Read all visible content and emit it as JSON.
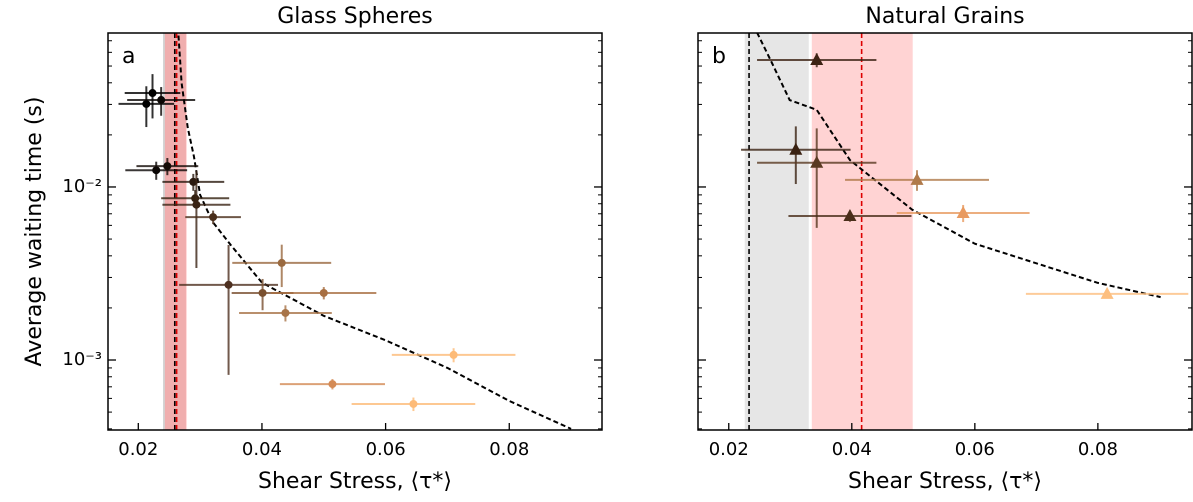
{
  "chart_data": [
    {
      "type": "scatter",
      "title": "Glass Spheres",
      "label": "a",
      "xlabel": "Shear Stress, ⟨τ*⟩",
      "ylabel": "Average waiting time (s)",
      "xlim": [
        0.0151,
        0.095
      ],
      "ylim": [
        0.000394,
        0.0776
      ],
      "ylog": true,
      "xticks": [
        0.02,
        0.04,
        0.06,
        0.08
      ],
      "yticks": [
        {
          "value": 0.001,
          "label": "10⁻³"
        },
        {
          "value": 0.01,
          "label": "10⁻²"
        }
      ],
      "ytick_labels": true,
      "yminorticks": [
        0.0004,
        0.0005,
        0.0006,
        0.0007,
        0.0008,
        0.0009,
        0.002,
        0.003,
        0.004,
        0.005,
        0.006,
        0.007,
        0.008,
        0.009,
        0.02,
        0.03,
        0.04,
        0.05,
        0.06,
        0.07
      ],
      "marker": "circle",
      "x": [
        0.0213,
        0.0223,
        0.0237,
        0.0229,
        0.0247,
        0.0289,
        0.0292,
        0.0294,
        0.0321,
        0.0346,
        0.0401,
        0.0432,
        0.05,
        0.0438,
        0.071,
        0.0514,
        0.0645
      ],
      "values": [
        0.0302,
        0.0349,
        0.0318,
        0.0125,
        0.0132,
        0.0107,
        0.0086,
        0.0079,
        0.0067,
        0.00272,
        0.00244,
        0.00364,
        0.00244,
        0.00187,
        0.00107,
        0.000726,
        0.000557
      ],
      "xerr": [
        0.0045,
        0.0045,
        0.0055,
        0.005,
        0.005,
        0.005,
        0.0055,
        0.0055,
        0.0045,
        0.008,
        0.005,
        0.008,
        0.0085,
        0.0075,
        0.01,
        0.0085,
        0.01
      ],
      "yerr": [
        0.008,
        0.01,
        0.006,
        0.0015,
        0.0015,
        0.0012,
        0.001,
        0.0045,
        0.0006,
        0.0019,
        0.0005,
        0.001,
        0.0002,
        0.0002,
        0.0001,
        5e-05,
        5e-05
      ],
      "colors": [
        "#000000",
        "#000000",
        "#0a0604",
        "#0a0604",
        "#140c07",
        "#2a1a0f",
        "#33200f",
        "#3a2414",
        "#4a2e1a",
        "#4e3020",
        "#7a5030",
        "#9a6a40",
        "#a86f42",
        "#a87448",
        "#fdbb78",
        "#d48a55",
        "#fdbb78"
      ],
      "fit": {
        "x": [
          0.0265,
          0.027,
          0.028,
          0.029,
          0.03,
          0.032,
          0.035,
          0.04,
          0.05,
          0.06,
          0.07,
          0.08,
          0.09
        ],
        "y": [
          0.075,
          0.04,
          0.022,
          0.015,
          0.009,
          0.0063,
          0.0046,
          0.0028,
          0.0018,
          0.0013,
          0.0009,
          0.00058,
          0.0004
        ]
      },
      "bands": [
        {
          "range": [
            0.024,
            0.0277
          ],
          "color": "#bbbbbb"
        },
        {
          "range": [
            0.0243,
            0.0278
          ],
          "color": "#ff9a9a"
        }
      ],
      "vlines": [
        {
          "x": 0.0259,
          "color": "#000000"
        },
        {
          "x": 0.0262,
          "color": "#dd0000"
        }
      ]
    },
    {
      "type": "scatter",
      "title": "Natural Grains",
      "label": "b",
      "xlabel": "Shear Stress, ⟨τ*⟩",
      "xlim": [
        0.015,
        0.0953
      ],
      "ylim": [
        0.000394,
        0.0776
      ],
      "ylog": true,
      "xticks": [
        0.02,
        0.04,
        0.06,
        0.08
      ],
      "yticks": [
        0.001,
        0.01
      ],
      "ytick_labels": false,
      "yminorticks": [
        0.0004,
        0.0005,
        0.0006,
        0.0007,
        0.0008,
        0.0009,
        0.002,
        0.003,
        0.004,
        0.005,
        0.006,
        0.007,
        0.008,
        0.009,
        0.02,
        0.03,
        0.04,
        0.05,
        0.06,
        0.07
      ],
      "marker": "triangle",
      "x": [
        0.0343,
        0.0309,
        0.0343,
        0.0506,
        0.0397,
        0.0581,
        0.0815
      ],
      "values": [
        0.0542,
        0.0164,
        0.0138,
        0.011,
        0.0068,
        0.00707,
        0.00241
      ],
      "xerr": [
        0.0097,
        0.0089,
        0.0097,
        0.0117,
        0.01,
        0.0108,
        0.0132
      ],
      "yerr": [
        0.005,
        0.006,
        0.008,
        0.0015,
        0.0005,
        0.0008,
        0.0001
      ],
      "colors": [
        "#3d2314",
        "#3a2212",
        "#5a3a22",
        "#b07a4a",
        "#4a2e1a",
        "#e89a60",
        "#fdbf80"
      ],
      "fit": {
        "x": [
          0.0246,
          0.0267,
          0.0299,
          0.0343,
          0.0397,
          0.0498,
          0.06,
          0.08,
          0.0902
        ],
        "y": [
          0.078,
          0.055,
          0.0318,
          0.0279,
          0.0143,
          0.0074,
          0.0047,
          0.00279,
          0.00231
        ]
      },
      "bands": [
        {
          "range": [
            0.0226,
            0.033
          ],
          "color": "#d9d9d9"
        },
        {
          "range": [
            0.0335,
            0.0499
          ],
          "color": "#ffbbbb"
        }
      ],
      "vlines": [
        {
          "x": 0.0233,
          "color": "#000000"
        },
        {
          "x": 0.0416,
          "color": "#dd0000"
        }
      ]
    }
  ]
}
